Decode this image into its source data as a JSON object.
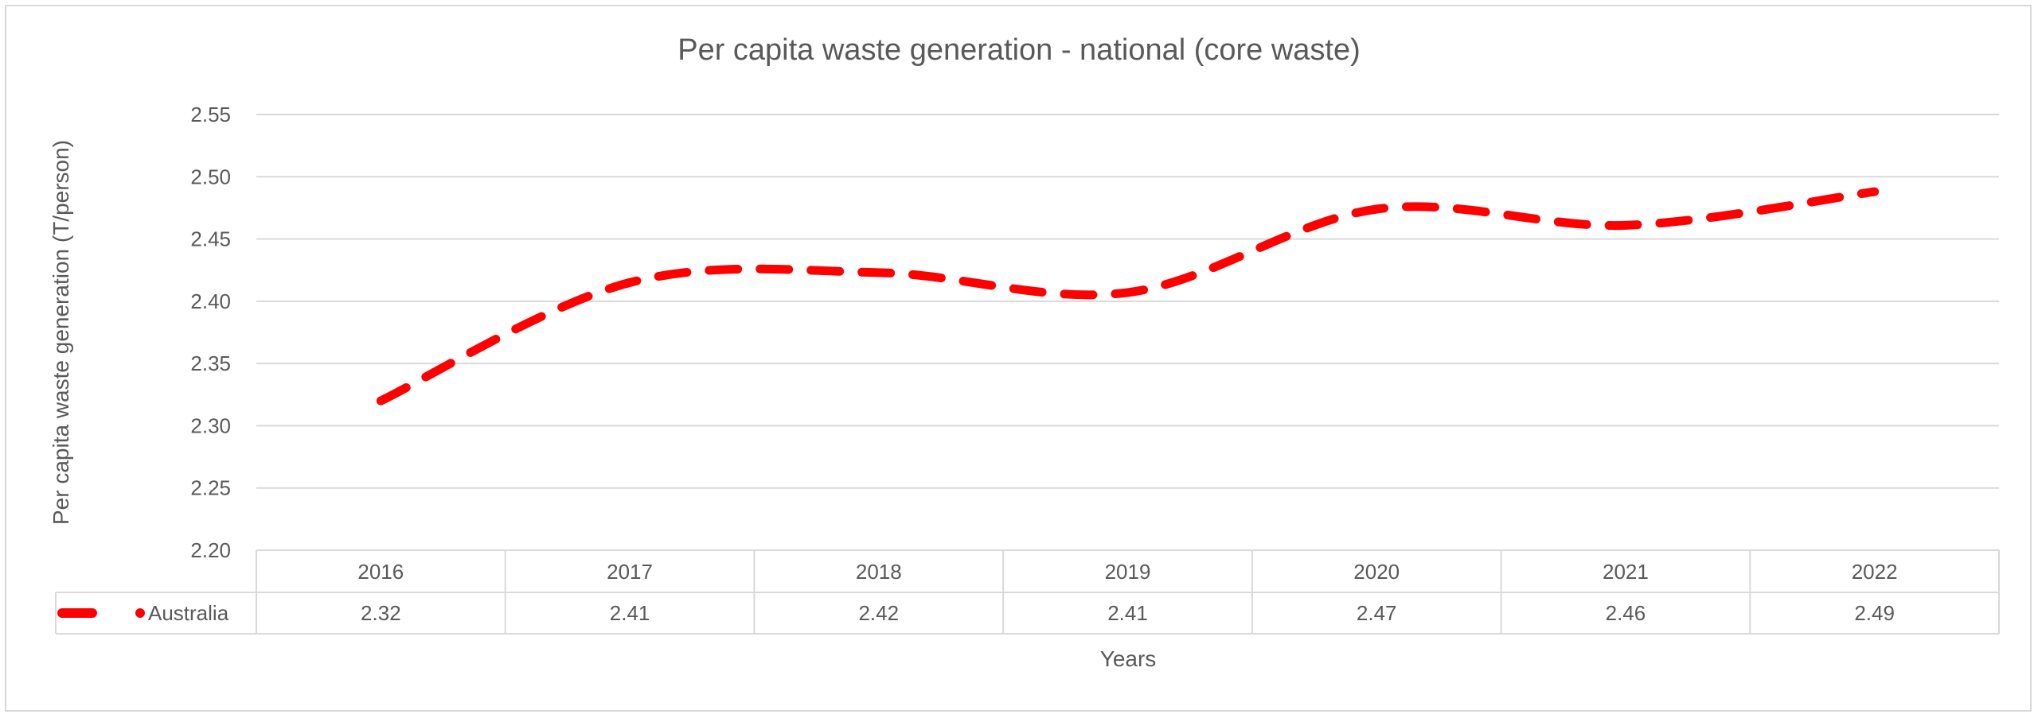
{
  "chart_data": {
    "type": "line",
    "title": "Per capita waste generation - national (core waste)",
    "xlabel": "Years",
    "ylabel": "Per capita waste generation (T/person)",
    "categories": [
      "2016",
      "2017",
      "2018",
      "2019",
      "2020",
      "2021",
      "2022"
    ],
    "ylim": [
      2.2,
      2.55
    ],
    "yticks": [
      "2.20",
      "2.25",
      "2.30",
      "2.35",
      "2.40",
      "2.45",
      "2.50",
      "2.55"
    ],
    "grid": true,
    "legend": "data-table",
    "series": [
      {
        "name": "Australia",
        "color": "#ff0000",
        "line_style": "dashed",
        "values": [
          2.32,
          2.415,
          2.423,
          2.407,
          2.474,
          2.461,
          2.488
        ],
        "table_labels": [
          "2.32",
          "2.41",
          "2.42",
          "2.41",
          "2.47",
          "2.46",
          "2.49"
        ]
      }
    ]
  }
}
